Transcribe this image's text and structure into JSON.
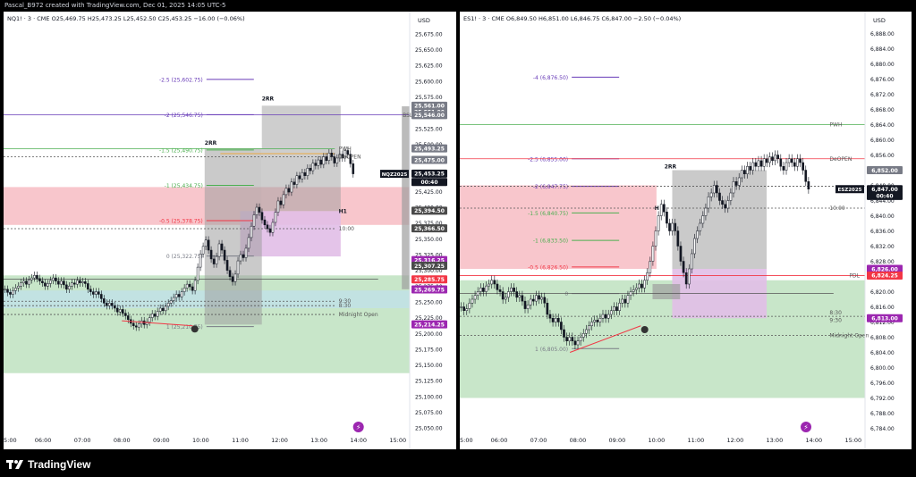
{
  "header": {
    "caption": "Pascal_B972 created with TradingView.com, Dec 01, 2025 14:05 UTC-5"
  },
  "footer": {
    "brand": "TradingView"
  },
  "colors": {
    "green_zone": "#c8e6c9",
    "red_zone": "#f8c6cc",
    "purple_zone": "#e1bee7",
    "gray_zone": "#9e9e9e",
    "candle": "#131722",
    "accent_purple": "#9c27b0",
    "accent_red": "#f23645",
    "accent_green": "#4caf50",
    "level_purple": "#673ab7"
  },
  "chart_data": [
    {
      "type": "candlestick",
      "symbol_line": "NQ1! · 3 · CME  O25,469.75  H25,473.25  L25,452.50  C25,453.25  −16.00 (−0.06%)",
      "currency": "USD",
      "ylim": [
        25037.5,
        25687.5
      ],
      "yticks": [
        "25,050.00",
        "25,075.00",
        "25,100.00",
        "25,125.00",
        "25,150.00",
        "25,175.00",
        "25,200.00",
        "25,225.00",
        "25,250.00",
        "25,275.00",
        "25,300.00",
        "25,325.00",
        "25,350.00",
        "25,375.00",
        "25,400.00",
        "25,425.00",
        "25,450.00",
        "25,475.00",
        "25,500.00",
        "25,525.00",
        "25,550.00",
        "25,575.00",
        "25,600.00",
        "25,625.00",
        "25,650.00",
        "25,675.00"
      ],
      "xticks": [
        "5:00",
        "06:00",
        "07:00",
        "08:00",
        "09:00",
        "10:00",
        "11:00",
        "12:00",
        "13:00",
        "14:00",
        "15:00"
      ],
      "xlim_hours": [
        5.0,
        15.3
      ],
      "closes": [
        25270,
        25265,
        25262,
        25268,
        25272,
        25275,
        25280,
        25283,
        25278,
        25285,
        25288,
        25292,
        25287,
        25283,
        25280,
        25275,
        25279,
        25284,
        25288,
        25283,
        25278,
        25283,
        25277,
        25270,
        25275,
        25280,
        25278,
        25284,
        25280,
        25282,
        25279,
        25270,
        25266,
        25262,
        25266,
        25262,
        25255,
        25248,
        25244,
        25248,
        25244,
        25240,
        25234,
        25238,
        25232,
        25228,
        25222,
        25216,
        25212,
        25210,
        25215,
        25220,
        25214,
        25218,
        25225,
        25231,
        25227,
        25235,
        25240,
        25236,
        25243,
        25248,
        25252,
        25257,
        25262,
        25258,
        25266,
        25272,
        25278,
        25274,
        25268,
        25284,
        25305,
        25326,
        25338,
        25348,
        25332,
        25318,
        25310,
        25322,
        25342,
        25332,
        25316,
        25300,
        25290,
        25282,
        25294,
        25315,
        25325,
        25320,
        25335,
        25352,
        25370,
        25388,
        25400,
        25392,
        25380,
        25372,
        25366,
        25360,
        25376,
        25392,
        25410,
        25404,
        25420,
        25430,
        25424,
        25440,
        25436,
        25450,
        25445,
        25455,
        25450,
        25462,
        25458,
        25470,
        25466,
        25475,
        25468,
        25480,
        25474,
        25486,
        25480,
        25470,
        25478,
        25484,
        25478,
        25490,
        25484,
        25469,
        25453
      ],
      "price_tags": [
        {
          "label": "25,561.00",
          "price": 25561,
          "color": "#787b86"
        },
        {
          "label": "25,551.00",
          "price": 25551,
          "color": "#787b86"
        },
        {
          "label": "25,546.00",
          "price": 25546,
          "color": "#787b86"
        },
        {
          "label": "25,493.25",
          "price": 25493.25,
          "color": "#787b86"
        },
        {
          "label": "25,475.00",
          "price": 25475,
          "color": "#787b86"
        },
        {
          "label": "25,453.25",
          "price": 25453.25,
          "color": "#131722"
        },
        {
          "label": "00:40",
          "price": 25440,
          "color": "#131722"
        },
        {
          "label": "25,394.50",
          "price": 25394.5,
          "color": "#4a4a4a"
        },
        {
          "label": "25,366.50",
          "price": 25366.5,
          "color": "#4a4a4a"
        },
        {
          "label": "25,316.25",
          "price": 25316.25,
          "color": "#9c27b0"
        },
        {
          "label": "25,307.25",
          "price": 25307.25,
          "color": "#4a4a4a"
        },
        {
          "label": "25,285.75",
          "price": 25285.75,
          "color": "#f23645"
        },
        {
          "label": "25,269.75",
          "price": 25269.75,
          "color": "#9c27b0"
        },
        {
          "label": "25,214.25",
          "price": 25214.25,
          "color": "#9c27b0"
        }
      ],
      "symbol_tag": "NQZ2025",
      "fib_levels": [
        {
          "label": "-2.5 (25,602.75)",
          "price": 25602.75,
          "color": "#673ab7"
        },
        {
          "label": "-2 (25,546.75)",
          "price": 25546.75,
          "color": "#673ab7"
        },
        {
          "label": "-1.5 (25,490.75)",
          "price": 25490.75,
          "color": "#4caf50"
        },
        {
          "label": "-1 (25,434.75)",
          "price": 25434.75,
          "color": "#4caf50"
        },
        {
          "label": "-0.5 (25,378.75)",
          "price": 25378.75,
          "color": "#f23645"
        },
        {
          "label": "0 (25,322.75)",
          "price": 25322.75,
          "color": "#787b86"
        },
        {
          "label": "1 (25,210.75)",
          "price": 25210.75,
          "color": "#787b86"
        }
      ],
      "annotations": [
        "PWH",
        "DeOPEN",
        "H1",
        "10:00",
        "9:30",
        "8:30",
        "Midnight Open",
        "BSL",
        "2RR",
        "2RR"
      ]
    },
    {
      "type": "candlestick",
      "symbol_line": "ES1! · 3 · CME  O6,849.50  H6,851.00  L6,846.75  C6,847.00  −2.50 (−0.04%)",
      "currency": "USD",
      "ylim": [
        6782,
        6890
      ],
      "yticks": [
        "6,784.00",
        "6,788.00",
        "6,792.00",
        "6,796.00",
        "6,800.00",
        "6,804.00",
        "6,808.00",
        "6,812.00",
        "6,816.00",
        "6,820.00",
        "6,824.00",
        "6,828.00",
        "6,832.00",
        "6,836.00",
        "6,840.00",
        "6,844.00",
        "6,848.00",
        "6,852.00",
        "6,856.00",
        "6,860.00",
        "6,864.00",
        "6,868.00",
        "6,872.00",
        "6,876.00",
        "6,880.00",
        "6,884.00",
        "6,888.00"
      ],
      "xticks": [
        "5:00",
        "06:00",
        "07:00",
        "08:00",
        "09:00",
        "10:00",
        "11:00",
        "12:00",
        "13:00",
        "14:00",
        "15:00"
      ],
      "xlim_hours": [
        5.0,
        15.3
      ],
      "closes": [
        6816,
        6815,
        6815.5,
        6817,
        6818,
        6819,
        6820,
        6821,
        6820,
        6821.5,
        6822,
        6823,
        6822,
        6820.5,
        6820,
        6818,
        6818.5,
        6820,
        6821,
        6820,
        6818.5,
        6819,
        6817.5,
        6815.5,
        6816.5,
        6818,
        6817.5,
        6819,
        6818,
        6818.5,
        6817,
        6814,
        6813,
        6812,
        6813,
        6812,
        6810,
        6808,
        6807,
        6808,
        6807,
        6806,
        6807,
        6808,
        6809,
        6810,
        6811,
        6812,
        6812.5,
        6812,
        6813,
        6814,
        6813,
        6814,
        6815,
        6816,
        6815,
        6817,
        6818,
        6817,
        6819,
        6820,
        6820.5,
        6821,
        6822,
        6821,
        6823,
        6825,
        6828,
        6832,
        6836,
        6840,
        6843,
        6841,
        6838,
        6836,
        6838,
        6836,
        6832,
        6828,
        6825,
        6822,
        6826,
        6830,
        6834,
        6836,
        6838,
        6840,
        6842,
        6845,
        6846,
        6848,
        6846,
        6844,
        6843,
        6842,
        6844,
        6846,
        6849,
        6848,
        6850,
        6852,
        6851,
        6853,
        6852,
        6854,
        6853,
        6854.5,
        6853,
        6855,
        6854,
        6855.5,
        6854.5,
        6856,
        6855,
        6853,
        6852,
        6854,
        6855,
        6854,
        6853,
        6855,
        6854,
        6852,
        6849,
        6847
      ],
      "price_tags": [
        {
          "label": "6,852.00",
          "price": 6852,
          "color": "#787b86"
        },
        {
          "label": "6,847.00",
          "price": 6847,
          "color": "#131722"
        },
        {
          "label": "00:40",
          "price": 6845.2,
          "color": "#131722"
        },
        {
          "label": "6,826.00",
          "price": 6826,
          "color": "#9c27b0"
        },
        {
          "label": "6,824.25",
          "price": 6824.25,
          "color": "#f23645"
        },
        {
          "label": "6,813.00",
          "price": 6813,
          "color": "#9c27b0"
        }
      ],
      "symbol_tag": "ESZ2025",
      "fib_levels": [
        {
          "label": "-4 (6,876.50)",
          "price": 6876.5,
          "color": "#673ab7"
        },
        {
          "label": "-2.5 (6,855.00)",
          "price": 6855,
          "color": "#673ab7"
        },
        {
          "label": "-2 (6,847.75)",
          "price": 6847.75,
          "color": "#673ab7"
        },
        {
          "label": "-1.5 (6,840.75)",
          "price": 6840.75,
          "color": "#4caf50"
        },
        {
          "label": "-1 (6,833.50)",
          "price": 6833.5,
          "color": "#4caf50"
        },
        {
          "label": "-0.5 (6,826.50)",
          "price": 6826.5,
          "color": "#f23645"
        },
        {
          "label": "0",
          "price": 6819.5,
          "color": "#787b86"
        },
        {
          "label": "1 (6,805.00)",
          "price": 6805,
          "color": "#787b86"
        }
      ],
      "annotations": [
        "PWH",
        "DeOPEN",
        "PDL",
        "10:00",
        "8:30",
        "9:30",
        "Midnight Open",
        "H",
        "2RR"
      ]
    }
  ]
}
